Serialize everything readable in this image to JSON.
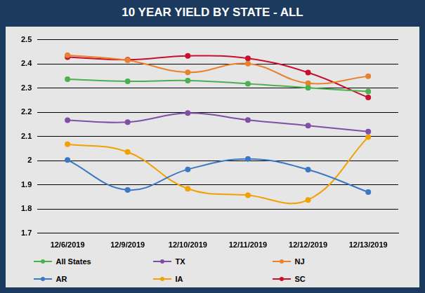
{
  "chart_data": {
    "type": "line",
    "title": "10 YEAR YIELD BY STATE - ALL",
    "categories": [
      "12/6/2019",
      "12/9/2019",
      "12/10/2019",
      "12/11/2019",
      "12/12/2019",
      "12/13/2019"
    ],
    "series": [
      {
        "name": "All States",
        "color": "#4caf50",
        "values": [
          2.337,
          2.328,
          2.331,
          2.318,
          2.301,
          2.286
        ]
      },
      {
        "name": "TX",
        "color": "#7f4fa8",
        "values": [
          2.167,
          2.159,
          2.197,
          2.168,
          2.145,
          2.12
        ]
      },
      {
        "name": "NJ",
        "color": "#e8822e",
        "values": [
          2.436,
          2.415,
          2.365,
          2.401,
          2.32,
          2.349
        ]
      },
      {
        "name": "AR",
        "color": "#3a78c4",
        "values": [
          2.003,
          1.879,
          1.964,
          2.007,
          1.963,
          1.87
        ]
      },
      {
        "name": "IA",
        "color": "#f0a202",
        "values": [
          2.068,
          2.036,
          1.884,
          1.857,
          1.838,
          2.098
        ]
      },
      {
        "name": "SC",
        "color": "#c8102e",
        "values": [
          2.428,
          2.417,
          2.433,
          2.423,
          2.364,
          2.261
        ]
      }
    ],
    "ylim": [
      1.7,
      2.5
    ],
    "yticks": [
      1.7,
      1.8,
      1.9,
      2,
      2.1,
      2.2,
      2.3,
      2.4,
      2.5
    ],
    "grid": true,
    "legend": "bottom",
    "marker": "circle"
  }
}
